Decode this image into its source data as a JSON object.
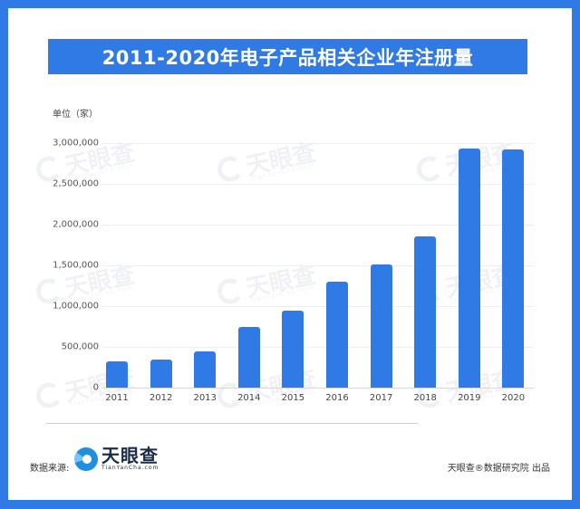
{
  "title": "2011-2020年电子产品相关企业年注册量",
  "unit_label": "单位（家）",
  "footer": {
    "source_label": "数据来源:",
    "logo_main": "天眼查",
    "logo_sub": "TianYanCha.com",
    "credit": "天眼查®数据研究院 出品"
  },
  "watermark": {
    "main": "天眼查",
    "sub": "TianYanCha.com"
  },
  "colors": {
    "frame": "#2f7ae5",
    "bar": "#2f7ae5",
    "background": "#ffffff"
  },
  "chart_data": {
    "type": "bar",
    "title": "2011-2020年电子产品相关企业年注册量",
    "xlabel": "",
    "ylabel": "单位（家）",
    "categories": [
      "2011",
      "2012",
      "2013",
      "2014",
      "2015",
      "2016",
      "2017",
      "2018",
      "2019",
      "2020"
    ],
    "values": [
      317000,
      341000,
      441000,
      741000,
      948000,
      1300000,
      1514000,
      1852000,
      2933000,
      2922000
    ],
    "y_ticks": [
      "0",
      "500,000",
      "1,000,000",
      "1,500,000",
      "2,000,000",
      "2,500,000",
      "3,000,000"
    ],
    "ylim": [
      0,
      3000000
    ],
    "grid": true,
    "legend": null
  }
}
